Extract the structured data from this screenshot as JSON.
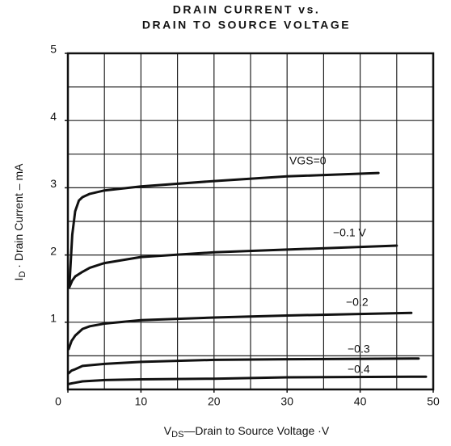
{
  "chart_data": {
    "type": "line",
    "title": [
      "DRAIN CURRENT vs.",
      "DRAIN TO SOURCE VOLTAGE"
    ],
    "x_label": {
      "main": "V",
      "sub": "DS",
      "rest": "—Drain to Source Voltage ·V"
    },
    "y_label": {
      "main": "I",
      "sub": "D",
      "rest": " · Drain Current – mA"
    },
    "xlim": [
      0,
      50
    ],
    "ylim": [
      0,
      5
    ],
    "xticks": [
      0,
      10,
      20,
      30,
      40,
      50
    ],
    "yticks": [
      1,
      2,
      3,
      4,
      5
    ],
    "xgrid": [
      5,
      10,
      15,
      20,
      25,
      30,
      35,
      40,
      45
    ],
    "ygrid": [
      0.5,
      1,
      1.5,
      2,
      2.5,
      3,
      3.5,
      4,
      4.5
    ],
    "color": "#111111",
    "series": [
      {
        "name": "VGS=0",
        "x": [
          0.2,
          0.6,
          1.0,
          1.5,
          2,
          3,
          5,
          10,
          20,
          30,
          42.5
        ],
        "values": [
          1.53,
          2.3,
          2.65,
          2.81,
          2.86,
          2.91,
          2.96,
          3.02,
          3.1,
          3.17,
          3.22
        ]
      },
      {
        "name": "−0.1 V",
        "x": [
          0.2,
          0.6,
          1.0,
          2,
          3,
          5,
          10,
          20,
          30,
          45
        ],
        "values": [
          1.52,
          1.62,
          1.68,
          1.75,
          1.81,
          1.88,
          1.97,
          2.04,
          2.08,
          2.14
        ]
      },
      {
        "name": "−0.2",
        "x": [
          0.1,
          0.5,
          1.0,
          2,
          3,
          5,
          10,
          20,
          30,
          47
        ],
        "values": [
          0.6,
          0.72,
          0.8,
          0.9,
          0.94,
          0.98,
          1.03,
          1.07,
          1.1,
          1.14
        ]
      },
      {
        "name": "−0.3",
        "x": [
          0.1,
          0.5,
          1.0,
          2,
          5,
          10,
          20,
          30,
          48
        ],
        "values": [
          0.24,
          0.28,
          0.3,
          0.35,
          0.38,
          0.41,
          0.44,
          0.45,
          0.46
        ]
      },
      {
        "name": "−0.4",
        "x": [
          0.1,
          0.5,
          1.0,
          2,
          5,
          10,
          20,
          30,
          49
        ],
        "values": [
          0.08,
          0.09,
          0.1,
          0.12,
          0.14,
          0.15,
          0.16,
          0.18,
          0.19
        ]
      }
    ]
  }
}
